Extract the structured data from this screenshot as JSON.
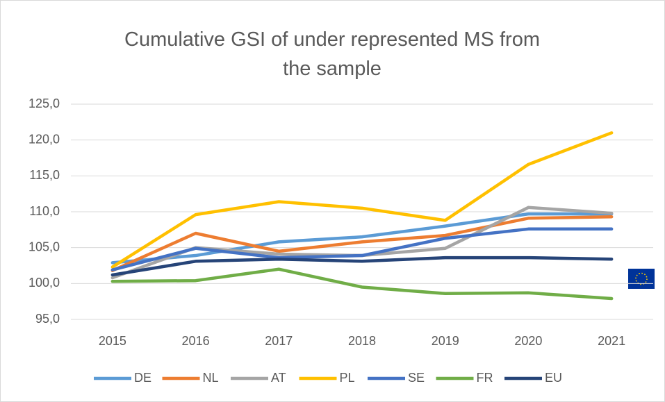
{
  "chart_data": {
    "type": "line",
    "title": "Cumulative GSI of under represented MS from the sample",
    "x": [
      "2015",
      "2016",
      "2017",
      "2018",
      "2019",
      "2020",
      "2021"
    ],
    "series": [
      {
        "name": "DE",
        "color": "#5b9bd5",
        "values": [
          102.9,
          103.9,
          105.8,
          106.5,
          108.0,
          109.7,
          109.7
        ]
      },
      {
        "name": "NL",
        "color": "#ed7d31",
        "values": [
          101.8,
          107.0,
          104.5,
          105.8,
          106.7,
          109.1,
          109.3
        ]
      },
      {
        "name": "AT",
        "color": "#a5a5a5",
        "values": [
          100.8,
          105.0,
          104.1,
          103.9,
          104.9,
          110.6,
          109.8
        ]
      },
      {
        "name": "PL",
        "color": "#ffc000",
        "values": [
          102.3,
          109.6,
          111.4,
          110.5,
          108.8,
          116.6,
          121.0
        ]
      },
      {
        "name": "SE",
        "color": "#4472c4",
        "values": [
          101.9,
          104.9,
          103.6,
          103.9,
          106.3,
          107.6,
          107.6
        ]
      },
      {
        "name": "FR",
        "color": "#70ad47",
        "values": [
          100.3,
          100.4,
          102.0,
          99.5,
          98.6,
          98.7,
          97.9
        ]
      },
      {
        "name": "EU",
        "color": "#264478",
        "values": [
          101.2,
          103.1,
          103.4,
          103.1,
          103.6,
          103.6,
          103.4
        ]
      }
    ],
    "ylim": [
      95,
      125
    ],
    "yticks": [
      {
        "value": 95,
        "label": "95,0"
      },
      {
        "value": 100,
        "label": "100,0"
      },
      {
        "value": 105,
        "label": "105,0"
      },
      {
        "value": 110,
        "label": "110,0"
      },
      {
        "value": 115,
        "label": "115,0"
      },
      {
        "value": 120,
        "label": "120,0"
      },
      {
        "value": 125,
        "label": "125,0"
      }
    ],
    "grid": true,
    "legend": "bottom"
  }
}
